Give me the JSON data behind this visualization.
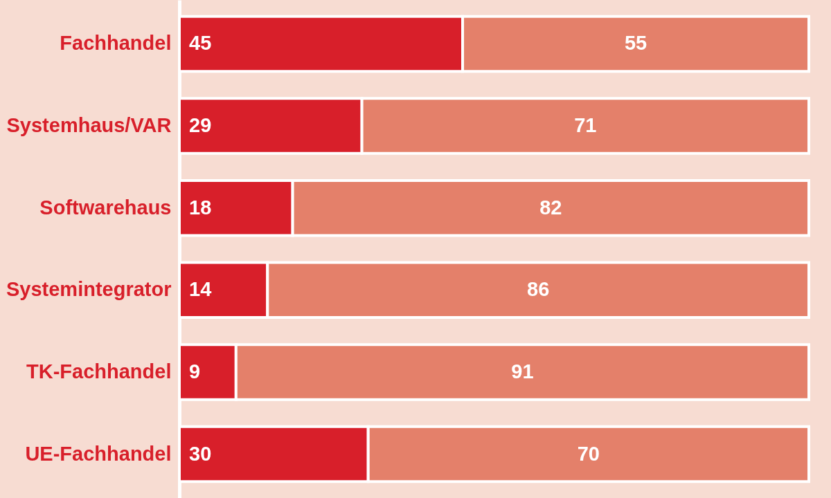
{
  "chart_data": {
    "type": "bar",
    "orientation": "horizontal",
    "stacked": true,
    "data_labels": true,
    "categories": [
      "Fachhandel",
      "Systemhaus/VAR",
      "Softwarehaus",
      "Systemintegrator",
      "TK-Fachhandel",
      "UE-Fachhandel"
    ],
    "series": [
      {
        "color": "#d81f2a",
        "values": [
          45,
          29,
          18,
          14,
          9,
          30
        ]
      },
      {
        "color": "#e4806a",
        "values": [
          55,
          71,
          82,
          86,
          91,
          70
        ]
      }
    ]
  }
}
